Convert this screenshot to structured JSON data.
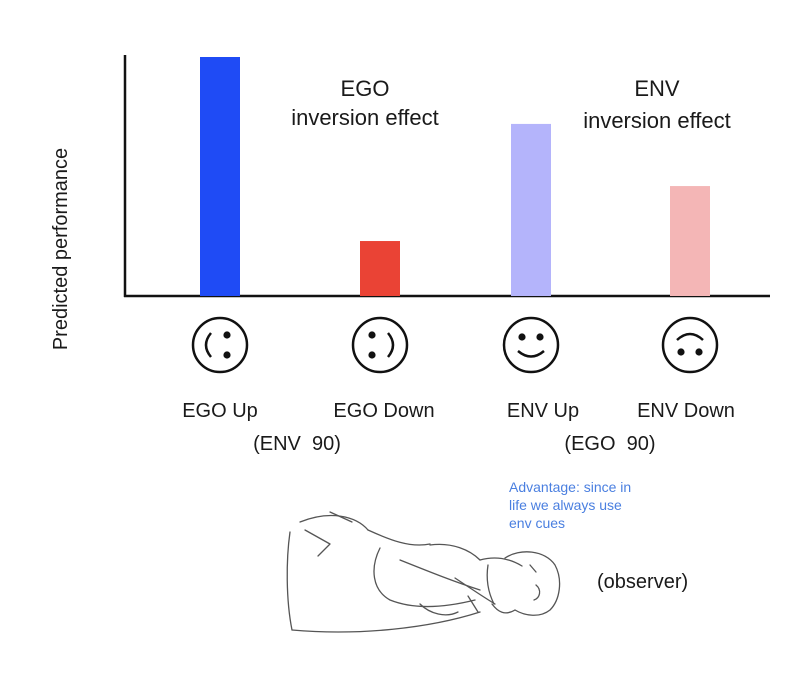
{
  "chart_data": {
    "type": "bar",
    "ylabel": "Predicted performance",
    "categories": [
      "EGO Up",
      "EGO Down",
      "ENV Up",
      "ENV Down"
    ],
    "values": [
      100,
      23,
      72,
      46
    ],
    "ylim": [
      0,
      100
    ],
    "bar_colors": [
      "#1f4bf5",
      "#ea4335",
      "#b4b4fb",
      "#f4b6b6"
    ],
    "face_icons": [
      "face-rotated-left-icon",
      "face-rotated-right-icon",
      "smiley-upright-icon",
      "face-upside-down-icon"
    ],
    "grid": false,
    "group_labels": [
      "(ENV  90)",
      "(EGO  90)"
    ],
    "annotations": {
      "ego_effect": [
        "EGO",
        "inversion effect"
      ],
      "env_effect": [
        "ENV",
        "inversion effect"
      ],
      "advantage_note": [
        "Advantage: since in",
        "life we always use",
        "env cues"
      ],
      "observer": "(observer)"
    }
  }
}
